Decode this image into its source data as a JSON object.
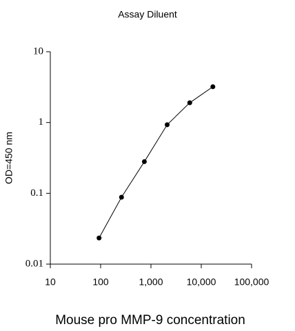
{
  "chart_data": {
    "type": "line",
    "title": "Assay Diluent",
    "x_label": "Mouse pro MMP-9 concentration",
    "y_label": "OD=450 nm",
    "log_x": true,
    "log_y": true,
    "x": [
      93,
      260,
      740,
      2100,
      5900,
      17000
    ],
    "series": [
      {
        "color": "#000000",
        "values": [
          0.0234,
          0.088,
          0.28,
          0.93,
          1.9,
          3.2
        ]
      }
    ],
    "xlim": [
      10,
      100000
    ],
    "xticks": [
      10,
      100,
      {
        "value": 1000,
        "label": "1,000"
      },
      {
        "value": 10000,
        "label": "10,000"
      },
      {
        "value": 100000,
        "label": "100,000"
      }
    ],
    "ylim": [
      0.01,
      10
    ],
    "yticks": [
      0.01,
      0.1,
      1,
      10
    ]
  }
}
